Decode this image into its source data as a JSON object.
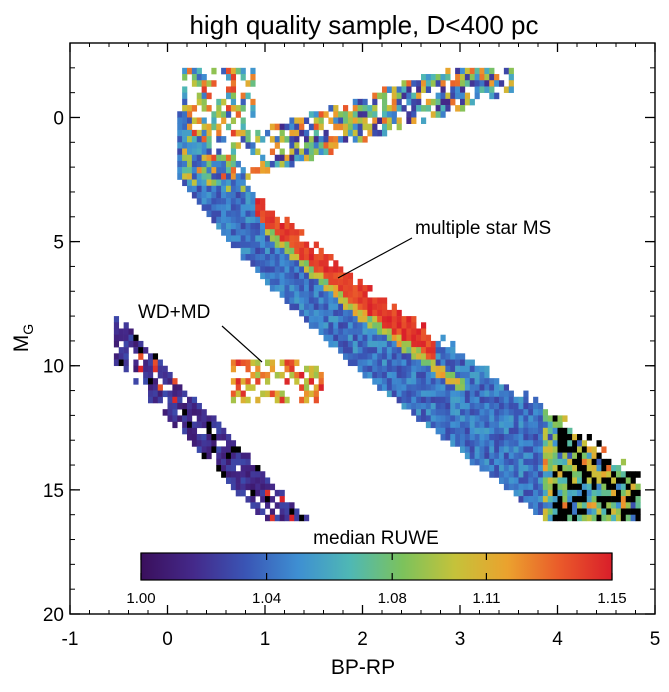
{
  "chart_data": {
    "type": "heatmap",
    "title": "high quality sample, D<400 pc",
    "xlabel": "BP-RP",
    "ylabel": "M",
    "ylabel_sub": "G",
    "xlim": [
      -1,
      5
    ],
    "ylim": [
      20,
      -3
    ],
    "y_inverted": true,
    "x_ticks": [
      {
        "value": -1,
        "label": "-1"
      },
      {
        "value": 0,
        "label": "0"
      },
      {
        "value": 1,
        "label": "1"
      },
      {
        "value": 2,
        "label": "2"
      },
      {
        "value": 3,
        "label": "3"
      },
      {
        "value": 4,
        "label": "4"
      },
      {
        "value": 5,
        "label": "5"
      }
    ],
    "y_ticks": [
      {
        "value": 0,
        "label": "0"
      },
      {
        "value": 5,
        "label": "5"
      },
      {
        "value": 10,
        "label": "10"
      },
      {
        "value": 15,
        "label": "15"
      },
      {
        "value": 20,
        "label": "20"
      }
    ],
    "colorbar": {
      "label": "median RUWE",
      "range": [
        1.0,
        1.15
      ],
      "ticks": [
        {
          "value": 1.0,
          "label": "1.00"
        },
        {
          "value": 1.04,
          "label": "1.04"
        },
        {
          "value": 1.08,
          "label": "1.08"
        },
        {
          "value": 1.11,
          "label": "1.11"
        },
        {
          "value": 1.15,
          "label": "1.15"
        }
      ],
      "colors": [
        "#3a0f5c",
        "#44298a",
        "#3a55b5",
        "#3e8fd2",
        "#4fb8b4",
        "#7cc25c",
        "#c5c23a",
        "#eba22e",
        "#ea5a2a",
        "#d91e2a"
      ]
    },
    "grid": false,
    "annotations": [
      {
        "text": "multiple star MS",
        "target_x": 1.8,
        "target_y": 6.0
      },
      {
        "text": "WD+MD",
        "target_x": 0.95,
        "target_y": 9.4
      }
    ],
    "regions": [
      {
        "name": "main sequence",
        "description_values": "band from (BP-RP 0.2, M_G 2) to (4.5, 15)"
      },
      {
        "name": "white dwarfs",
        "description_values": "band from (-0.5, 9) to (1.5, 15.5)"
      },
      {
        "name": "giant branch",
        "description_values": "(0.9..3.5, M_G -2..2)"
      }
    ]
  }
}
